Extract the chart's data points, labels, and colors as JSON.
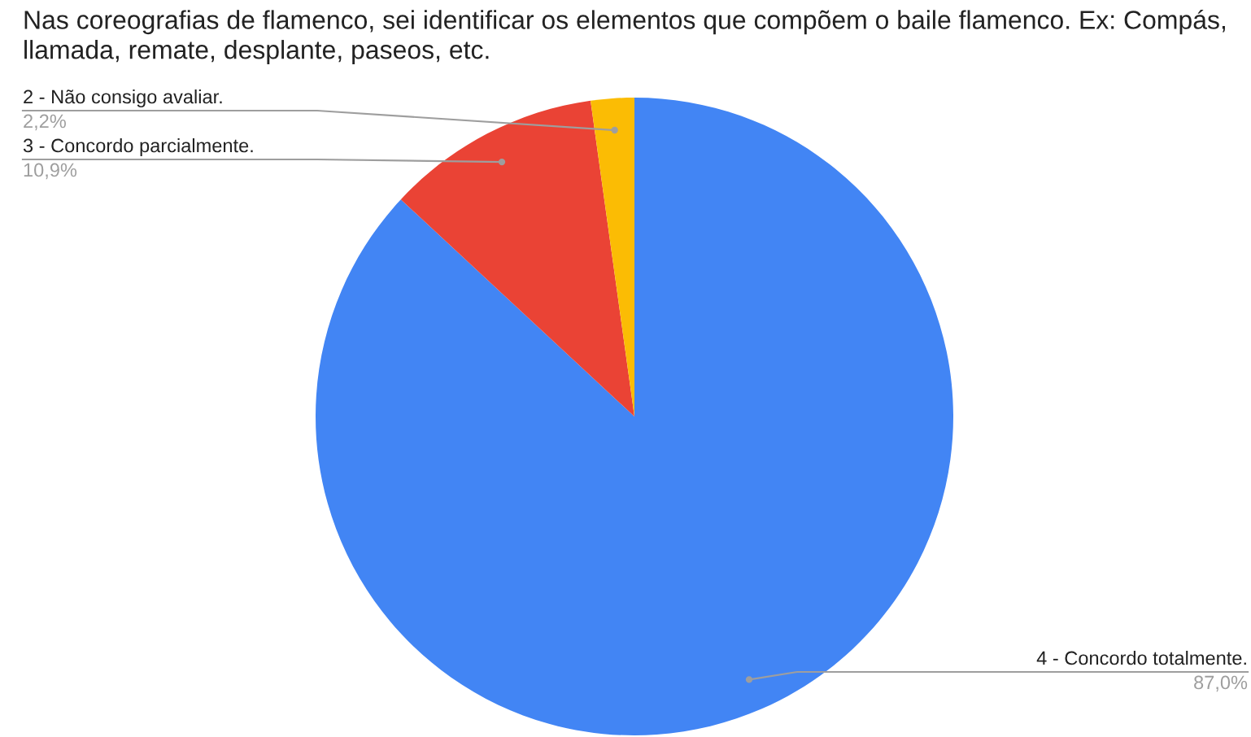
{
  "chart_data": {
    "type": "pie",
    "title": "Nas coreografias de flamenco, sei identificar os elementos que compõem o baile flamenco. Ex: Compás, llamada, remate, desplante, paseos, etc.",
    "categories": [
      "4 - Concordo totalmente.",
      "3 - Concordo parcialmente.",
      "2 - Não consigo avaliar."
    ],
    "values": [
      87.0,
      10.9,
      2.2
    ],
    "value_labels": [
      "87,0%",
      "10,9%",
      "2,2%"
    ],
    "colors": [
      "#4285f4",
      "#ea4335",
      "#fbbc04"
    ],
    "legend": false
  }
}
